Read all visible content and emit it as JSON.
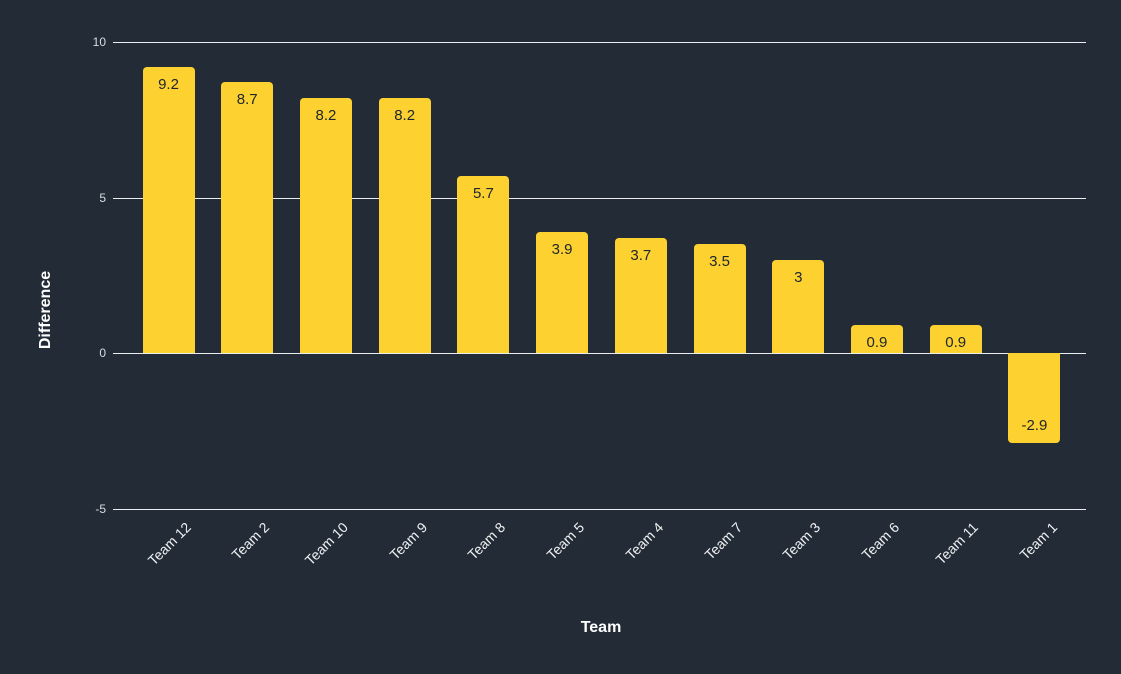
{
  "chart_data": {
    "type": "bar",
    "xlabel": "Team",
    "ylabel": "Difference",
    "categories": [
      "Team 12",
      "Team 2",
      "Team 10",
      "Team 9",
      "Team 8",
      "Team 5",
      "Team 4",
      "Team 7",
      "Team 3",
      "Team 6",
      "Team 11",
      "Team 1"
    ],
    "values": [
      9.2,
      8.7,
      8.2,
      8.2,
      5.7,
      3.9,
      3.7,
      3.5,
      3,
      0.9,
      0.9,
      -2.9
    ],
    "value_labels": [
      "9.2",
      "8.7",
      "8.2",
      "8.2",
      "5.7",
      "3.9",
      "3.7",
      "3.5",
      "3",
      "0.9",
      "0.9",
      "-2.9"
    ],
    "y_ticks": [
      10,
      5,
      0,
      -5
    ],
    "ylim": [
      -5,
      10
    ],
    "grid": true,
    "legend": "none",
    "bar_color": "#fdd230",
    "background_color": "#222b36",
    "grid_color": "#e9edf2",
    "tick_label_color": "#d9dde2",
    "category_label_color": "#eff1f3",
    "axis_title_color": "#ffffff",
    "bar_label_color": "#20262e"
  }
}
